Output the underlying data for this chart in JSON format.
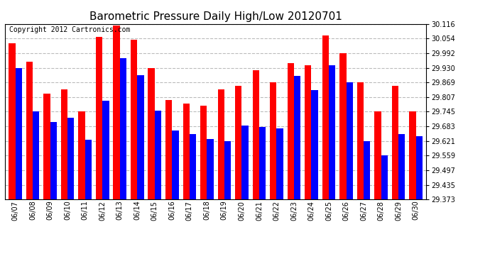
{
  "title": "Barometric Pressure Daily High/Low 20120701",
  "copyright_text": "Copyright 2012 Cartronics.com",
  "dates": [
    "06/07",
    "06/08",
    "06/09",
    "06/10",
    "06/11",
    "06/12",
    "06/13",
    "06/14",
    "06/15",
    "06/16",
    "06/17",
    "06/18",
    "06/19",
    "06/20",
    "06/21",
    "06/22",
    "06/23",
    "06/24",
    "06/25",
    "06/26",
    "06/27",
    "06/28",
    "06/29",
    "06/30"
  ],
  "highs": [
    30.035,
    29.955,
    29.82,
    29.84,
    29.745,
    30.06,
    30.11,
    30.05,
    29.93,
    29.795,
    29.78,
    29.77,
    29.84,
    29.855,
    29.92,
    29.87,
    29.95,
    29.94,
    30.068,
    29.992,
    29.869,
    29.745,
    29.855,
    29.745
  ],
  "lows": [
    29.93,
    29.745,
    29.7,
    29.72,
    29.625,
    29.79,
    29.97,
    29.9,
    29.75,
    29.665,
    29.65,
    29.63,
    29.62,
    29.685,
    29.68,
    29.675,
    29.895,
    29.835,
    29.94,
    29.869,
    29.62,
    29.56,
    29.65,
    29.64
  ],
  "ymin": 29.373,
  "ymax": 30.116,
  "yticks": [
    29.373,
    29.435,
    29.497,
    29.559,
    29.621,
    29.683,
    29.745,
    29.807,
    29.869,
    29.93,
    29.992,
    30.054,
    30.116
  ],
  "bar_width": 0.38,
  "high_color": "#ff0000",
  "low_color": "#0000ff",
  "background_color": "#ffffff",
  "grid_color": "#bbbbbb",
  "title_fontsize": 11,
  "tick_fontsize": 7,
  "copyright_fontsize": 7
}
